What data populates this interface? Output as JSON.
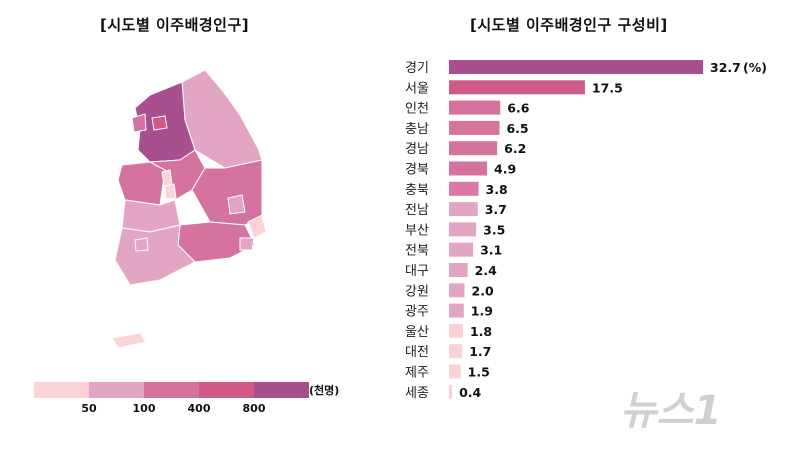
{
  "map": {
    "title": "[시도별 이주배경인구]",
    "legend": {
      "unit": "(천명)",
      "thresholds": [
        "50",
        "100",
        "400",
        "800"
      ],
      "colors": [
        "#fbd3d7",
        "#e3a5c4",
        "#d5739f",
        "#cf5a8a",
        "#a84f8f"
      ]
    },
    "region_colors": {
      "경기": "#a84f8f",
      "서울": "#cf5a8a",
      "인천": "#d5739f",
      "강원": "#e3a5c4",
      "충남": "#d5739f",
      "충북": "#d5739f",
      "경북": "#d5739f",
      "경남": "#d5739f",
      "전북": "#e3a5c4",
      "전남": "#e3a5c4",
      "대전": "#fbd3d7",
      "세종": "#fbd3d7",
      "대구": "#e3a5c4",
      "울산": "#fbd3d7",
      "부산": "#e3a5c4",
      "광주": "#e3a5c4",
      "제주": "#fbd3d7"
    }
  },
  "chart_data": {
    "type": "bar",
    "orientation": "horizontal",
    "title": "[시도별 이주배경인구 구성비]",
    "unit_label": "(%)",
    "categories": [
      "경기",
      "서울",
      "인천",
      "충남",
      "경남",
      "경북",
      "충북",
      "전남",
      "부산",
      "전북",
      "대구",
      "강원",
      "광주",
      "울산",
      "대전",
      "제주",
      "세종"
    ],
    "values": [
      32.7,
      17.5,
      6.6,
      6.5,
      6.2,
      4.9,
      3.8,
      3.7,
      3.5,
      3.1,
      2.4,
      2.0,
      1.9,
      1.8,
      1.7,
      1.5,
      0.4
    ],
    "value_labels": [
      "32.7",
      "17.5",
      "6.6",
      "6.5",
      "6.2",
      "4.9",
      "3.8",
      "3.7",
      "3.5",
      "3.1",
      "2.4",
      "2.0",
      "1.9",
      "1.8",
      "1.7",
      "1.5",
      "0.4"
    ],
    "colors": [
      "#a84f8f",
      "#cf5a8a",
      "#d5739f",
      "#d5739f",
      "#d5739f",
      "#d5739f",
      "#d97aa6",
      "#e3a5c4",
      "#e3a5c4",
      "#e3a5c4",
      "#e3a5c4",
      "#e3a5c4",
      "#e3a5c4",
      "#fbd3d7",
      "#fbd3d7",
      "#fbd3d7",
      "#fbd3d7"
    ],
    "xlim": [
      0,
      32.7
    ]
  },
  "watermark": "뉴스1"
}
